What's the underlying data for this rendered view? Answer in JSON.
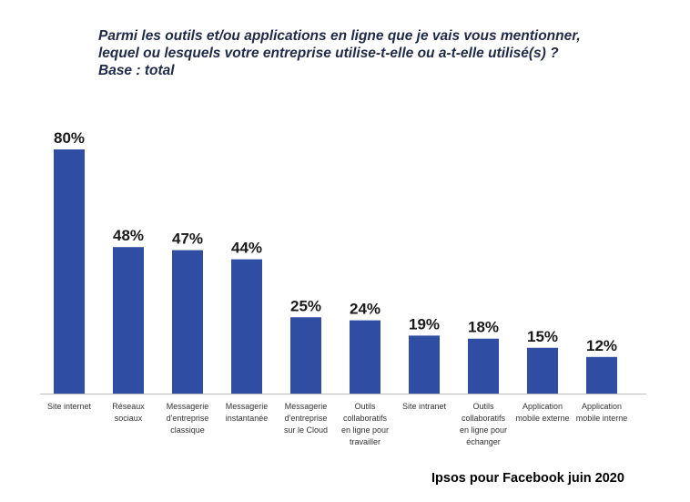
{
  "chart_data": {
    "type": "bar",
    "title_lines": [
      "Parmi les outils et/ou applications en ligne que je vais vous mentionner,",
      "lequel ou lesquels votre entreprise utilise-t-elle ou a-t-elle utilisé(s) ?",
      "Base : total"
    ],
    "categories": [
      [
        "Site internet"
      ],
      [
        "Réseaux",
        "sociaux"
      ],
      [
        "Messagerie",
        "d'entreprise",
        "classique"
      ],
      [
        "Messagerie",
        "instantanée"
      ],
      [
        "Messagerie",
        "d'entreprise",
        "sur le Cloud"
      ],
      [
        "Outils",
        "collaboratifs",
        "en ligne pour",
        "travailler"
      ],
      [
        "Site intranet"
      ],
      [
        "Outils",
        "collaboratifs",
        "en ligne pour",
        "échanger"
      ],
      [
        "Application",
        "mobile externe"
      ],
      [
        "Application",
        "mobile interne"
      ]
    ],
    "values": [
      80,
      48,
      47,
      44,
      25,
      24,
      19,
      18,
      15,
      12
    ],
    "value_labels": [
      "80%",
      "48%",
      "47%",
      "44%",
      "25%",
      "24%",
      "19%",
      "18%",
      "15%",
      "12%"
    ],
    "ylim": [
      0,
      100
    ],
    "xlabel": "",
    "ylabel": "",
    "grid": false,
    "legend": "none",
    "bar_color": "#2f4ea3",
    "axis_color": "#bfbfbf"
  },
  "source": "Ipsos pour Facebook juin 2020"
}
